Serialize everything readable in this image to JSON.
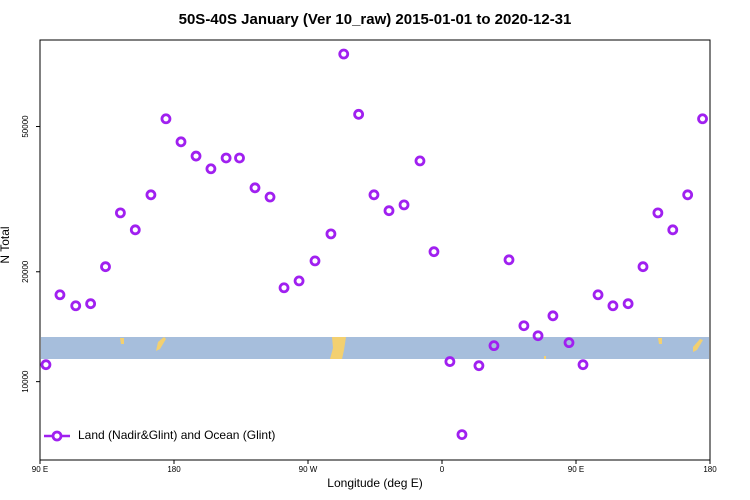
{
  "chart_data": {
    "type": "scatter",
    "title": "50S-40S January (Ver 10_raw)   2015-01-01 to 2020-12-31",
    "xlabel": "Longitude (deg E)",
    "ylabel": "N Total",
    "log_y": true,
    "legend": "bottom-left",
    "xlim": [
      90,
      540
    ],
    "ylim": [
      6100,
      86300
    ],
    "xticks": [
      {
        "value": 90,
        "label": "90 E"
      },
      {
        "value": 180,
        "label": "180"
      },
      {
        "value": 270,
        "label": "90 W"
      },
      {
        "value": 360,
        "label": "0"
      },
      {
        "value": 450,
        "label": "90 E"
      },
      {
        "value": 540,
        "label": "180"
      }
    ],
    "yticks": [
      10000,
      20000,
      50000
    ],
    "series": [
      {
        "name": "Land (Nadir&Glint) and Ocean (Glint)",
        "color": "#a020f0",
        "x": [
          94,
          103.4,
          114,
          124,
          134,
          144,
          154,
          164.5,
          174.6,
          184.7,
          194.8,
          204.8,
          215,
          224,
          234.4,
          244.5,
          253.9,
          264,
          274.7,
          285.4,
          294,
          304,
          314.3,
          324.4,
          334.5,
          345.2,
          354.6,
          365.3,
          373.4,
          384.8,
          394.9,
          405,
          415,
          424.5,
          434.5,
          445.3,
          454.7,
          464.8,
          474.8,
          485,
          495,
          505,
          515,
          525,
          535
        ],
        "values": [
          11130,
          17300,
          16140,
          16350,
          20650,
          29000,
          26060,
          32500,
          52500,
          45400,
          41500,
          38300,
          41000,
          41000,
          33970,
          32050,
          18080,
          18880,
          21420,
          25400,
          79000,
          54000,
          32500,
          29400,
          30500,
          40250,
          22700,
          11350,
          7160,
          11060,
          12550,
          21570,
          14230,
          13360,
          15150,
          12790,
          11130,
          17300,
          16140,
          16350,
          20650,
          29000,
          26060,
          32500,
          52500
        ]
      }
    ]
  }
}
